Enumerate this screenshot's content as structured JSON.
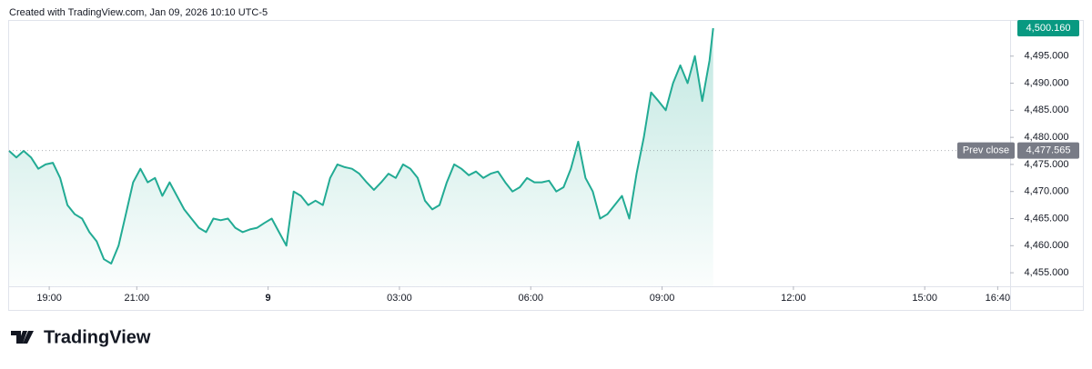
{
  "header": "Created with TradingView.com, Jan 09, 2026 10:10 UTC-5",
  "logo": "TradingView",
  "chart_data": {
    "type": "area",
    "x": [
      "18:05",
      "18:15",
      "18:25",
      "18:35",
      "18:45",
      "18:55",
      "19:05",
      "19:15",
      "19:25",
      "19:35",
      "19:45",
      "19:55",
      "20:05",
      "20:15",
      "20:25",
      "20:35",
      "20:45",
      "20:55",
      "21:05",
      "21:15",
      "21:25",
      "21:35",
      "21:45",
      "21:55",
      "22:05",
      "22:15",
      "22:25",
      "22:35",
      "22:45",
      "22:55",
      "23:05",
      "23:15",
      "23:25",
      "23:35",
      "23:45",
      "23:55",
      "00:05",
      "00:15",
      "00:25",
      "00:35",
      "00:45",
      "00:55",
      "01:05",
      "01:15",
      "01:25",
      "01:35",
      "01:45",
      "01:55",
      "02:05",
      "02:15",
      "02:25",
      "02:35",
      "02:45",
      "02:55",
      "03:05",
      "03:15",
      "03:25",
      "03:35",
      "03:45",
      "03:55",
      "04:05",
      "04:15",
      "04:25",
      "04:35",
      "04:45",
      "04:55",
      "05:05",
      "05:15",
      "05:25",
      "05:35",
      "05:45",
      "05:55",
      "06:05",
      "06:15",
      "06:25",
      "06:35",
      "06:45",
      "06:55",
      "07:05",
      "07:15",
      "07:25",
      "07:35",
      "07:45",
      "07:55",
      "08:05",
      "08:15",
      "08:25",
      "08:35",
      "08:45",
      "08:55",
      "09:05",
      "09:15",
      "09:25",
      "09:35",
      "09:45",
      "09:55",
      "10:05",
      "10:10"
    ],
    "values": [
      4477.5,
      4476.3,
      4477.5,
      4476.3,
      4474.2,
      4475,
      4475.3,
      4472.5,
      4467.5,
      4465.8,
      4465,
      4462.5,
      4460.8,
      4457.5,
      4456.7,
      4460,
      4465.8,
      4471.7,
      4474.2,
      4471.7,
      4472.5,
      4469.2,
      4471.7,
      4469.2,
      4466.7,
      4465,
      4463.3,
      4462.5,
      4465,
      4464.7,
      4465,
      4463.3,
      4462.5,
      4463,
      4463.3,
      4464.2,
      4465,
      4462.5,
      4460,
      4470,
      4469.2,
      4467.5,
      4468.3,
      4467.5,
      4472.5,
      4475,
      4474.5,
      4474.2,
      4473.3,
      4471.7,
      4470.3,
      4471.7,
      4473.3,
      4472.5,
      4475,
      4474.2,
      4472.5,
      4468.3,
      4466.7,
      4467.5,
      4471.7,
      4475,
      4474.2,
      4473,
      4473.7,
      4472.5,
      4473.3,
      4473.7,
      4471.7,
      4470,
      4470.8,
      4472.5,
      4471.7,
      4471.7,
      4472,
      4470,
      4470.8,
      4474.2,
      4479.2,
      4472.5,
      4470,
      4465,
      4465.8,
      4467.5,
      4469.2,
      4465,
      4473.3,
      4480,
      4488.3,
      4486.7,
      4485,
      4490,
      4493.3,
      4490,
      4495,
      4486.7,
      4494.2,
      4500.16
    ],
    "color": "#22ab94",
    "xlim": [
      "18:05",
      "16:57"
    ],
    "xticks": [
      "19:00",
      "21:00",
      {
        "value": "00:00",
        "label": "9"
      },
      "03:00",
      "06:00",
      "09:00",
      "12:00",
      "15:00",
      "16:40"
    ],
    "ylim": [
      4452.5,
      4501.67
    ],
    "yticks": [
      {
        "value": 4455,
        "label": "4,455.000"
      },
      {
        "value": 4460,
        "label": "4,460.000"
      },
      {
        "value": 4465,
        "label": "4,465.000"
      },
      {
        "value": 4470,
        "label": "4,470.000"
      },
      {
        "value": 4475,
        "label": "4,475.000"
      },
      {
        "value": 4480,
        "label": "4,480.000"
      },
      {
        "value": 4485,
        "label": "4,485.000"
      },
      {
        "value": 4490,
        "label": "4,490.000"
      },
      {
        "value": 4495,
        "label": "4,495.000"
      }
    ],
    "last_price": {
      "value": 4500.16,
      "label": "4,500.160"
    },
    "prev_close": {
      "name": "Prev close",
      "value": 4477.565,
      "label": "4,477.565",
      "color": "#787b86"
    },
    "grid": false
  }
}
